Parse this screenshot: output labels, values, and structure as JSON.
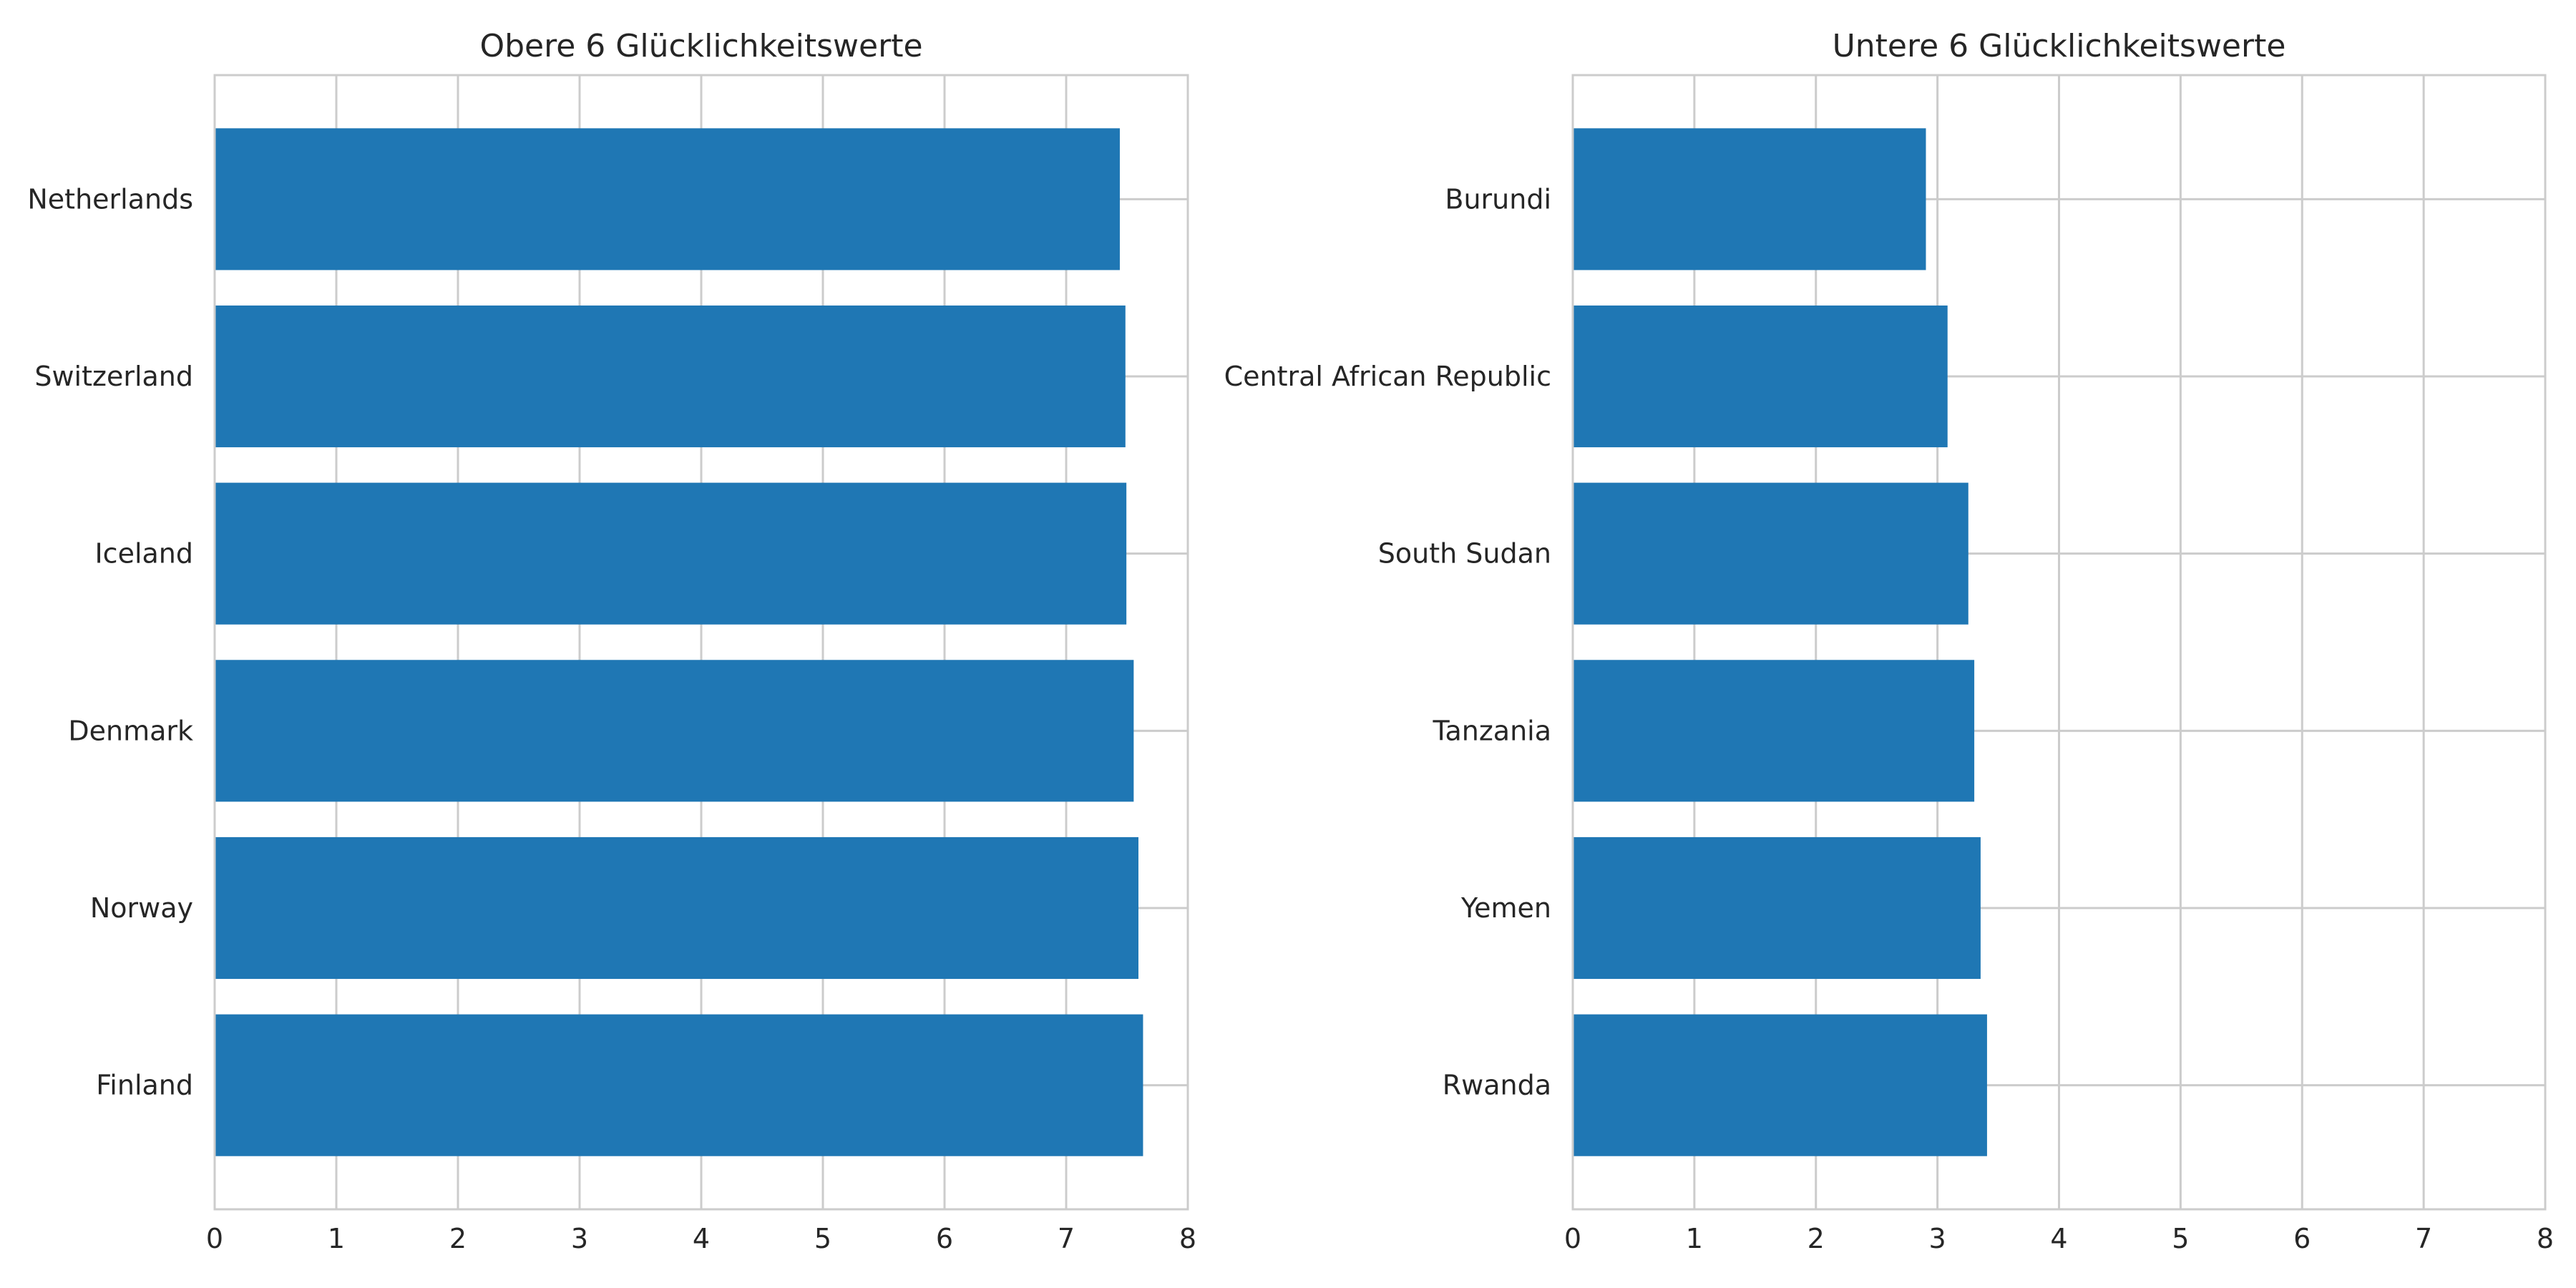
{
  "chart_data": [
    {
      "type": "bar",
      "orientation": "horizontal",
      "title": "Obere 6 Glücklichkeitswerte",
      "categories": [
        "Finland",
        "Norway",
        "Denmark",
        "Iceland",
        "Switzerland",
        "Netherlands"
      ],
      "values": [
        7.632,
        7.594,
        7.555,
        7.495,
        7.487,
        7.441
      ],
      "xlabel": "",
      "ylabel": "",
      "xlim": [
        0,
        8
      ],
      "xticks": [
        "0",
        "1",
        "2",
        "3",
        "4",
        "5",
        "6",
        "7",
        "8"
      ],
      "grid": true,
      "bar_color": "#1f77b4"
    },
    {
      "type": "bar",
      "orientation": "horizontal",
      "title": "Untere 6 Glücklichkeitswerte",
      "categories": [
        "Rwanda",
        "Yemen",
        "Tanzania",
        "South Sudan",
        "Central African Republic",
        "Burundi"
      ],
      "values": [
        3.408,
        3.355,
        3.303,
        3.254,
        3.083,
        2.905
      ],
      "xlabel": "",
      "ylabel": "",
      "xlim": [
        0,
        8
      ],
      "xticks": [
        "0",
        "1",
        "2",
        "3",
        "4",
        "5",
        "6",
        "7",
        "8"
      ],
      "grid": true,
      "bar_color": "#1f77b4"
    }
  ],
  "colors": {
    "background": "#ffffff",
    "grid": "#cccccc",
    "spine": "#cccccc",
    "text": "#262626"
  }
}
